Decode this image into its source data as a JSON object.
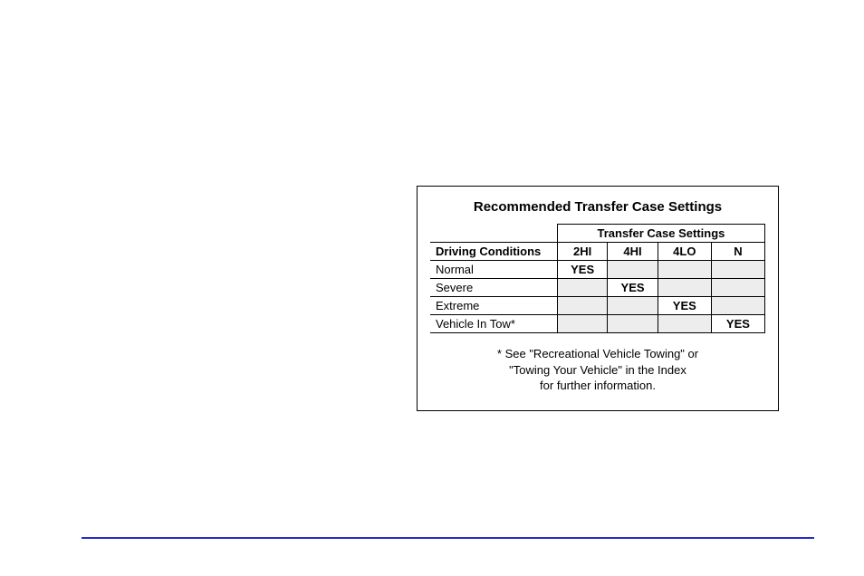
{
  "panel": {
    "title": "Recommended Transfer Case Settings",
    "super_header": "Transfer Case Settings",
    "row_header_label": "Driving Conditions",
    "settings": [
      "2HI",
      "4HI",
      "4LO",
      "N"
    ],
    "rows": [
      {
        "label": "Normal",
        "vals": [
          "YES",
          "",
          "",
          ""
        ],
        "shaded": [
          false,
          true,
          true,
          true
        ]
      },
      {
        "label": "Severe",
        "vals": [
          "",
          "YES",
          "",
          ""
        ],
        "shaded": [
          true,
          false,
          true,
          true
        ]
      },
      {
        "label": "Extreme",
        "vals": [
          "",
          "",
          "YES",
          ""
        ],
        "shaded": [
          true,
          true,
          false,
          true
        ]
      },
      {
        "label": "Vehicle In Tow*",
        "vals": [
          "",
          "",
          "",
          "YES"
        ],
        "shaded": [
          true,
          true,
          true,
          false
        ]
      }
    ],
    "footnote_lines": [
      "* See \"Recreational Vehicle Towing\" or",
      "\"Towing Your Vehicle\" in the Index",
      "for further information."
    ]
  },
  "style": {
    "panel_border_color": "#000000",
    "shade_color": "#ededed",
    "hr_color": "#2a2acc",
    "col_widths_pct": [
      38,
      15,
      15,
      16,
      16
    ]
  }
}
